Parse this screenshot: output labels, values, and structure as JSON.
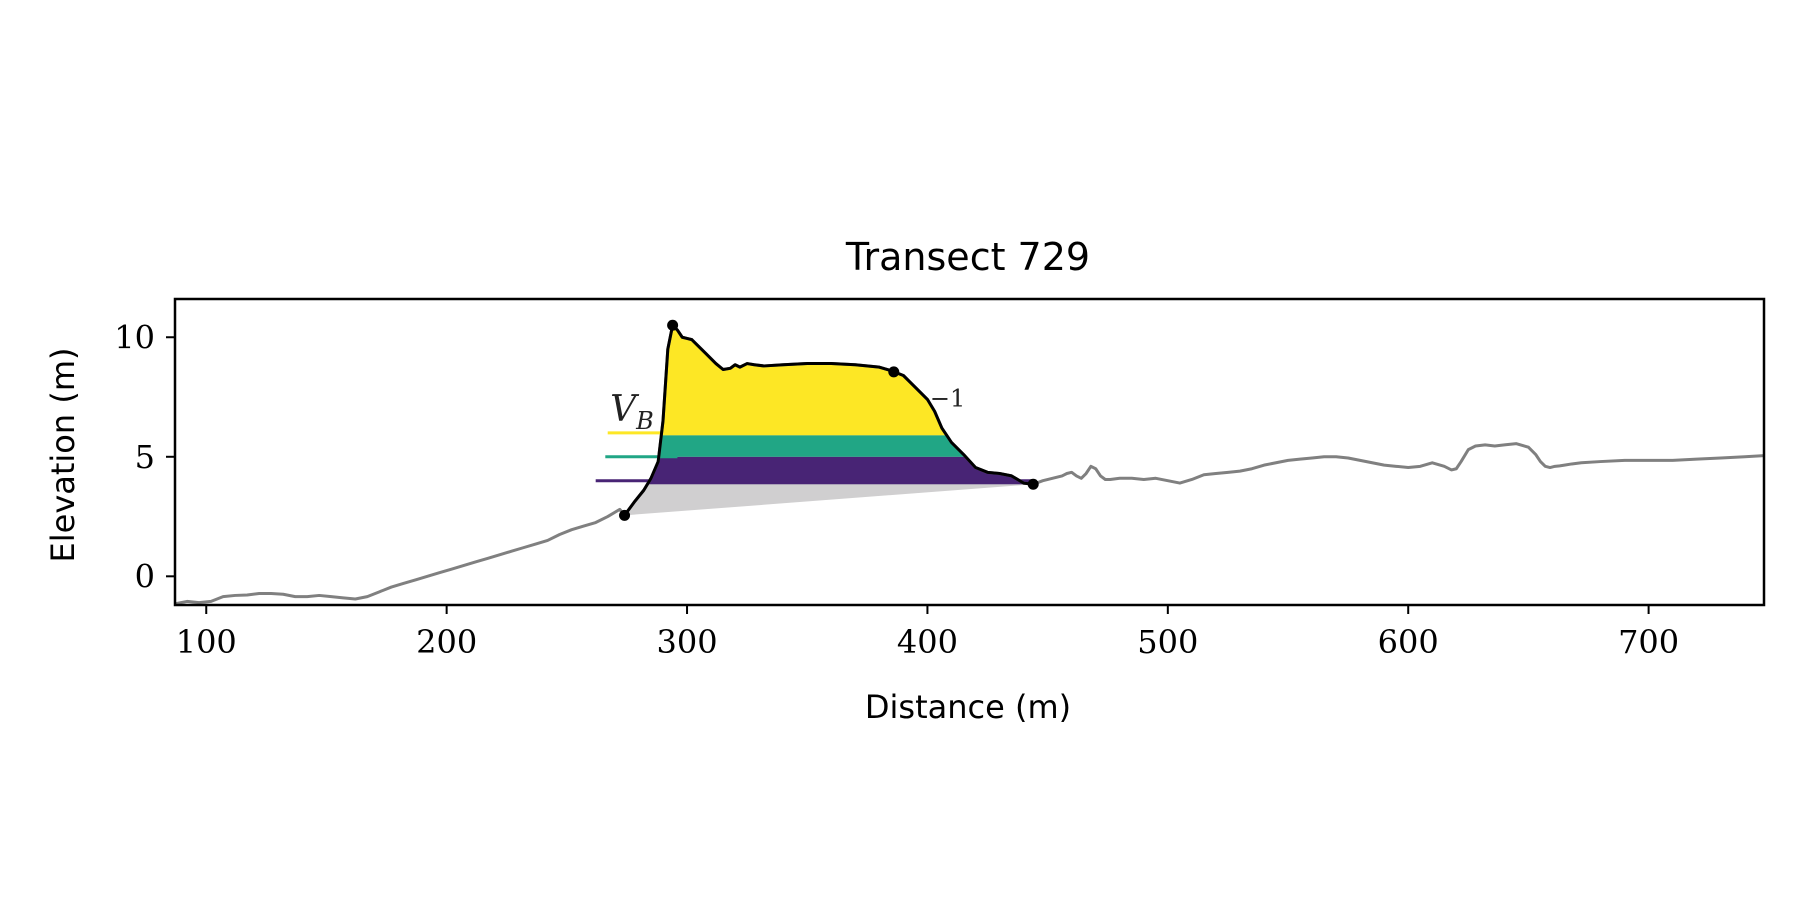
{
  "chart_data": {
    "type": "area",
    "title": "Transect 729",
    "xlabel": "Distance (m)",
    "ylabel": "Elevation (m)",
    "xlim": [
      87,
      748
    ],
    "ylim": [
      -1.2,
      11.6
    ],
    "xticks": [
      100,
      200,
      300,
      400,
      500,
      600,
      700
    ],
    "yticks": [
      0,
      5,
      10
    ],
    "grid": false,
    "legend": "none",
    "colors": {
      "profile": "#808080",
      "dune": "#000000",
      "base_fill": "#d0cfd0",
      "band_high": "#fde725",
      "band_mid": "#21a685",
      "band_low": "#482475",
      "marker": "#000000"
    },
    "profile": {
      "x": [
        87,
        92,
        97,
        102,
        107,
        112,
        117,
        122,
        127,
        132,
        137,
        142,
        147,
        152,
        157,
        162,
        167,
        172,
        177,
        182,
        187,
        192,
        197,
        202,
        207,
        212,
        217,
        222,
        227,
        232,
        237,
        242,
        247,
        252,
        257,
        262,
        267,
        272,
        274,
        278,
        282,
        285,
        288,
        290,
        292,
        294,
        296,
        298,
        300,
        302,
        305,
        308,
        312,
        315,
        318,
        320,
        322,
        325,
        328,
        332,
        340,
        350,
        360,
        370,
        380,
        385,
        390,
        395,
        400,
        403,
        406,
        410,
        415,
        420,
        425,
        430,
        435,
        440,
        444,
        448,
        452,
        456,
        458,
        460,
        462,
        464,
        466,
        468,
        470,
        472,
        474,
        476,
        480,
        485,
        490,
        495,
        500,
        505,
        510,
        515,
        520,
        525,
        530,
        535,
        540,
        545,
        550,
        555,
        560,
        565,
        570,
        575,
        580,
        585,
        590,
        595,
        600,
        605,
        610,
        615,
        618,
        620,
        622,
        625,
        628,
        632,
        636,
        640,
        645,
        650,
        653,
        655,
        657,
        659,
        661,
        663,
        665,
        668,
        672,
        680,
        690,
        700,
        710,
        720,
        730,
        740,
        748
      ],
      "y": [
        -1.15,
        -1.05,
        -1.1,
        -1.05,
        -0.85,
        -0.8,
        -0.78,
        -0.72,
        -0.72,
        -0.75,
        -0.85,
        -0.85,
        -0.8,
        -0.85,
        -0.9,
        -0.95,
        -0.85,
        -0.65,
        -0.45,
        -0.3,
        -0.15,
        0.0,
        0.15,
        0.3,
        0.45,
        0.6,
        0.75,
        0.9,
        1.05,
        1.2,
        1.35,
        1.5,
        1.75,
        1.95,
        2.1,
        2.25,
        2.5,
        2.8,
        2.55,
        3.1,
        3.6,
        4.1,
        4.8,
        6.5,
        9.5,
        10.5,
        10.3,
        10.0,
        9.95,
        9.9,
        9.6,
        9.3,
        8.9,
        8.65,
        8.7,
        8.85,
        8.75,
        8.9,
        8.85,
        8.8,
        8.85,
        8.9,
        8.9,
        8.85,
        8.75,
        8.6,
        8.4,
        7.9,
        7.4,
        6.9,
        6.2,
        5.6,
        5.1,
        4.55,
        4.35,
        4.3,
        4.2,
        3.9,
        3.85,
        4.0,
        4.1,
        4.2,
        4.3,
        4.35,
        4.2,
        4.1,
        4.3,
        4.6,
        4.5,
        4.2,
        4.05,
        4.05,
        4.1,
        4.1,
        4.05,
        4.1,
        4.0,
        3.9,
        4.05,
        4.25,
        4.3,
        4.35,
        4.4,
        4.5,
        4.65,
        4.75,
        4.85,
        4.9,
        4.95,
        5.0,
        5.0,
        4.95,
        4.85,
        4.75,
        4.65,
        4.6,
        4.55,
        4.6,
        4.75,
        4.6,
        4.45,
        4.5,
        4.8,
        5.3,
        5.45,
        5.5,
        5.45,
        5.5,
        5.55,
        5.4,
        5.1,
        4.8,
        4.6,
        4.55,
        4.6,
        4.62,
        4.65,
        4.7,
        4.75,
        4.8,
        4.85,
        4.85,
        4.85,
        4.9,
        4.95,
        5.0,
        5.05
      ]
    },
    "dune_profile": {
      "x": [
        274,
        278,
        282,
        285,
        288,
        290,
        292,
        294,
        296,
        298,
        300,
        302,
        305,
        308,
        312,
        315,
        318,
        320,
        322,
        325,
        328,
        332,
        340,
        350,
        360,
        370,
        380,
        385,
        390,
        395,
        400,
        403,
        406,
        410,
        415,
        420,
        425,
        430,
        435,
        440,
        444
      ],
      "y": [
        2.55,
        3.1,
        3.6,
        4.1,
        4.8,
        6.5,
        9.5,
        10.5,
        10.3,
        10.0,
        9.95,
        9.9,
        9.6,
        9.3,
        8.9,
        8.65,
        8.7,
        8.85,
        8.75,
        8.9,
        8.85,
        8.8,
        8.85,
        8.9,
        8.9,
        8.85,
        8.75,
        8.6,
        8.4,
        7.9,
        7.4,
        6.9,
        6.2,
        5.6,
        5.1,
        4.55,
        4.35,
        4.3,
        4.2,
        3.9,
        3.85
      ]
    },
    "points": [
      {
        "x": 274,
        "y": 2.55
      },
      {
        "x": 294,
        "y": 10.5
      },
      {
        "x": 386,
        "y": 8.55
      },
      {
        "x": 444,
        "y": 3.85
      }
    ],
    "base_line": {
      "x": [
        274,
        444
      ],
      "y": [
        2.55,
        3.85
      ]
    },
    "bands": [
      {
        "from": 3.85,
        "to": 4.0,
        "color": "band_low"
      },
      {
        "from": 4.0,
        "to": 5.0,
        "color": "band_low"
      },
      {
        "from": 5.0,
        "to": 5.9,
        "color": "band_mid"
      },
      {
        "from": 5.9,
        "to": 11.0,
        "color": "band_high"
      }
    ],
    "level_lines": [
      {
        "y": 4.0,
        "x_start": 262,
        "color": "band_low"
      },
      {
        "y": 5.0,
        "x_start": 266,
        "color": "band_mid"
      },
      {
        "y": 6.0,
        "x_start": 267,
        "color": "band_high"
      }
    ],
    "annotations": [
      {
        "text": "V",
        "sub": "B",
        "x": 268,
        "y": 6.5
      },
      {
        "text": "−1",
        "x": 401,
        "y": 7.1
      }
    ]
  }
}
